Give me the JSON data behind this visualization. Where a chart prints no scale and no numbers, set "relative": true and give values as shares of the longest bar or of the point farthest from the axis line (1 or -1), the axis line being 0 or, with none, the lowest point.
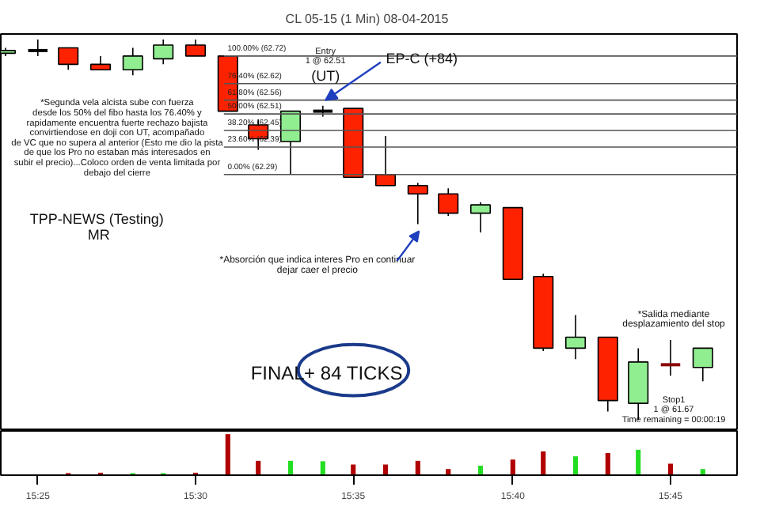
{
  "chart_data": [
    {
      "type": "candlestick",
      "title": "CL 05-15 (1 Min)  08-04-2015",
      "tick_labels": false,
      "ylim": [
        61.36,
        62.8
      ],
      "x": [
        15.4,
        15.417,
        15.433,
        15.45,
        15.467,
        15.483,
        15.5,
        15.517,
        15.533,
        15.55,
        15.567,
        15.583,
        15.6,
        15.617,
        15.633,
        15.65,
        15.667,
        15.683,
        15.7,
        15.717,
        15.733,
        15.75,
        15.767
      ],
      "xlim": [
        15.3975,
        15.785
      ],
      "ohlc": [
        [
          62.73,
          62.75,
          62.72,
          62.74
        ],
        [
          62.74,
          62.78,
          62.72,
          62.74
        ],
        [
          62.75,
          62.75,
          62.67,
          62.69
        ],
        [
          62.69,
          62.72,
          62.67,
          62.67
        ],
        [
          62.67,
          62.75,
          62.65,
          62.72
        ],
        [
          62.71,
          62.78,
          62.69,
          62.76
        ],
        [
          62.76,
          62.78,
          62.72,
          62.72
        ],
        [
          62.72,
          62.72,
          62.52,
          62.52
        ],
        [
          62.47,
          62.49,
          62.38,
          62.42
        ],
        [
          62.41,
          62.52,
          62.29,
          62.52
        ],
        [
          62.52,
          62.54,
          62.5,
          62.52
        ],
        [
          62.53,
          62.53,
          62.28,
          62.28
        ],
        [
          62.29,
          62.43,
          62.25,
          62.25
        ],
        [
          62.25,
          62.26,
          62.11,
          62.22
        ],
        [
          62.22,
          62.24,
          62.14,
          62.15
        ],
        [
          62.15,
          62.19,
          62.08,
          62.18
        ],
        [
          62.17,
          62.17,
          61.91,
          61.91
        ],
        [
          61.92,
          61.93,
          61.65,
          61.66
        ],
        [
          61.66,
          61.78,
          61.62,
          61.7
        ],
        [
          61.7,
          61.7,
          61.43,
          61.47
        ],
        [
          61.46,
          61.66,
          61.4,
          61.61
        ],
        [
          61.6,
          61.69,
          61.56,
          61.6
        ],
        [
          61.59,
          61.66,
          61.54,
          61.66
        ]
      ],
      "colors": [
        "#90ee90",
        "#000000",
        "#ff2200",
        "#ff2200",
        "#90ee90",
        "#90ee90",
        "#ff2200",
        "#ff2200",
        "#ff2200",
        "#90ee90",
        "#000000",
        "#ff2200",
        "#ff2200",
        "#ff2200",
        "#ff2200",
        "#90ee90",
        "#ff2200",
        "#ff2200",
        "#90ee90",
        "#ff2200",
        "#90ee90",
        "#8b0000",
        "#90ee90"
      ],
      "ref_lines": [
        {
          "axis": "y",
          "value": 62.72,
          "label": "100.00% (62.72)",
          "color": "#555555"
        },
        {
          "axis": "y",
          "value": 62.62,
          "label": "76.40% (62.62)",
          "color": "#555555"
        },
        {
          "axis": "y",
          "value": 62.56,
          "label": "61.80% (62.56)",
          "color": "#555555"
        },
        {
          "axis": "y",
          "value": 62.51,
          "label": "50.00% (62.51)",
          "color": "#555555"
        },
        {
          "axis": "y",
          "value": 62.45,
          "label": "38.20% (62.45)",
          "color": "#555555"
        },
        {
          "axis": "y",
          "value": 62.39,
          "label": "23.60% (62.39)",
          "color": "#555555"
        },
        {
          "axis": "y",
          "value": 62.29,
          "label": "0.00% (62.29)",
          "color": "#555555"
        }
      ],
      "annotations": [
        "*Segunda vela alcista sube con fuerza\ndesde los 50% del fibo hasta los 76.40% y\nrapidamente encuentra fuerte rechazo bajista\nconvirtiendose en doji con UT, acompañado\nde VC que no supera al anterior (Esto me dio la pista\nde que los Pro no estaban más interesados en\nsubir el precio)...Coloco orden de venta limitada por\ndebajo del cierre",
        "TPP-NEWS  (Testing)",
        "MR",
        "Entry\n1 @ 62.51",
        "(UT)",
        {
          "text": "EP-C (+84)",
          "y": 62.56
        },
        "*Absorción que indica interes Pro en continuar\ndejar caer el precio",
        "FINAL",
        "+ 84 TICKS",
        "*Salida mediante\ndesplazamiento del stop",
        "Stop1\n1 @ 61.67\nTime remaining = 00:00:19"
      ]
    },
    {
      "type": "bar",
      "relative": true,
      "tick_labels": "x",
      "x": [
        15.433,
        15.45,
        15.467,
        15.483,
        15.5,
        15.517,
        15.533,
        15.55,
        15.567,
        15.583,
        15.6,
        15.617,
        15.633,
        15.65,
        15.667,
        15.683,
        15.7,
        15.717,
        15.733,
        15.75,
        15.767
      ],
      "xlim": [
        15.3975,
        15.785
      ],
      "xticks": [
        {
          "value": 15.417,
          "label": "15:25"
        },
        {
          "value": 15.5,
          "label": "15:30"
        },
        {
          "value": 15.583,
          "label": "15:35"
        },
        {
          "value": 15.667,
          "label": "15:40"
        },
        {
          "value": 15.75,
          "label": "15:45"
        }
      ],
      "values": [
        0.05,
        0.06,
        0.05,
        0.05,
        0.06,
        1,
        0.35,
        0.35,
        0.34,
        0.26,
        0.26,
        0.35,
        0.15,
        0.23,
        0.38,
        0.58,
        0.46,
        0.54,
        0.62,
        0.28,
        0.15
      ],
      "colors": [
        "#b00000",
        "#b00000",
        "#22dd22",
        "#22dd22",
        "#b00000",
        "#b00000",
        "#b00000",
        "#22dd22",
        "#22dd22",
        "#b00000",
        "#b00000",
        "#b00000",
        "#b00000",
        "#22dd22",
        "#b00000",
        "#b00000",
        "#22dd22",
        "#b00000",
        "#22dd22",
        "#b00000",
        "#22dd22"
      ]
    }
  ]
}
